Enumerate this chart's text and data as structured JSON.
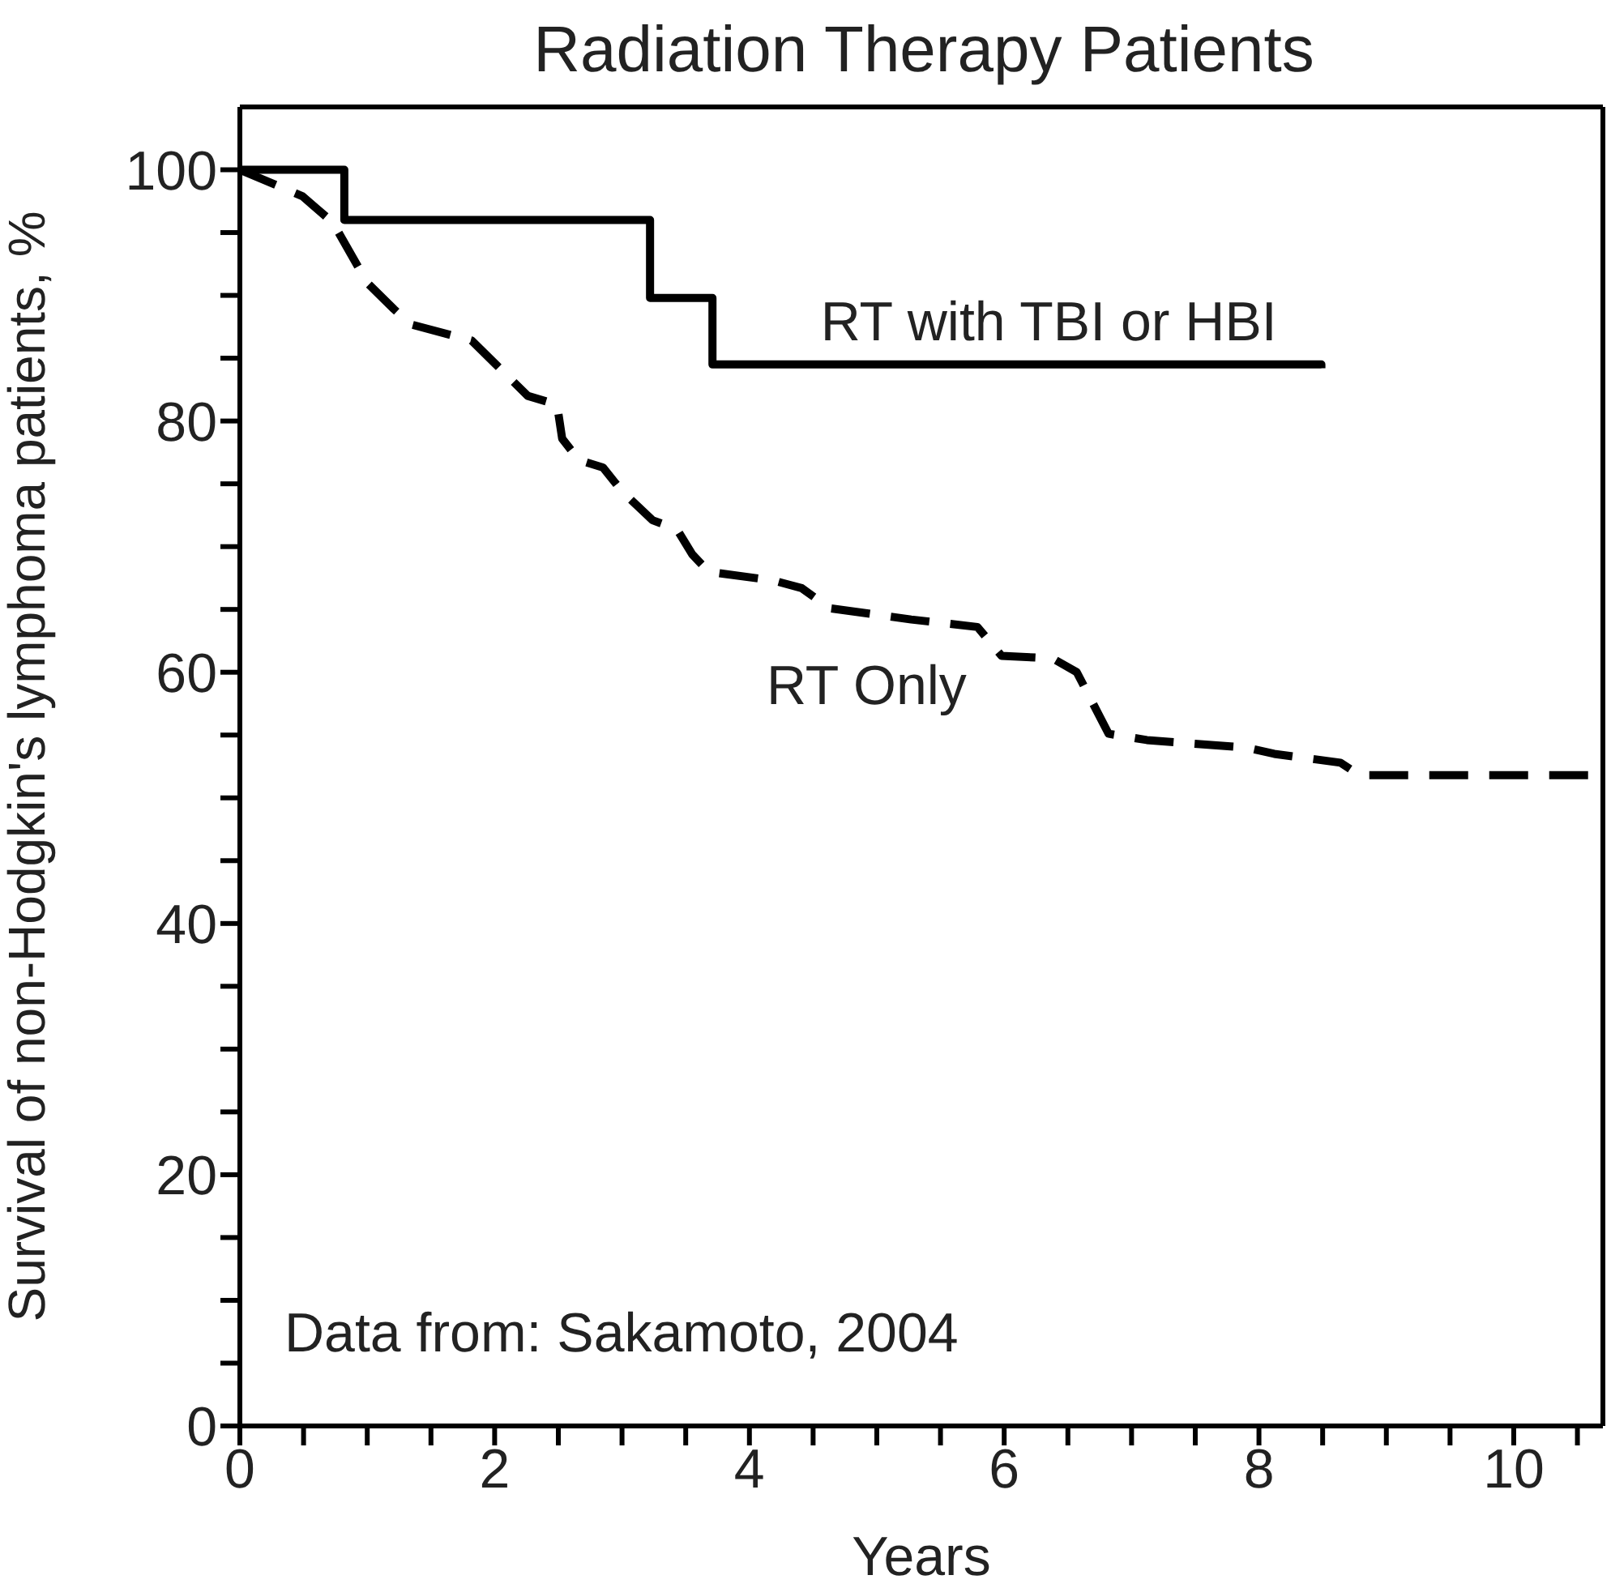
{
  "chart_data": {
    "type": "line",
    "title": "Radiation Therapy Patients",
    "xlabel": "Years",
    "ylabel": "Survival of non-Hodgkin's lymphoma patients, %",
    "xlim": [
      0,
      10.7
    ],
    "ylim": [
      0,
      105
    ],
    "xticks": [
      0,
      {
        "value": 0.5,
        "label": null
      },
      {
        "value": 1,
        "label": null
      },
      {
        "value": 1.5,
        "label": null
      },
      2,
      {
        "value": 2.5,
        "label": null
      },
      {
        "value": 3,
        "label": null
      },
      {
        "value": 3.5,
        "label": null
      },
      4,
      {
        "value": 4.5,
        "label": null
      },
      {
        "value": 5,
        "label": null
      },
      {
        "value": 5.5,
        "label": null
      },
      6,
      {
        "value": 6.5,
        "label": null
      },
      {
        "value": 7,
        "label": null
      },
      {
        "value": 7.5,
        "label": null
      },
      8,
      {
        "value": 8.5,
        "label": null
      },
      {
        "value": 9,
        "label": null
      },
      {
        "value": 9.5,
        "label": null
      },
      10,
      {
        "value": 10.5,
        "label": null
      }
    ],
    "yticks": [
      0,
      {
        "value": 5,
        "label": null
      },
      {
        "value": 10,
        "label": null
      },
      {
        "value": 15,
        "label": null
      },
      20,
      {
        "value": 25,
        "label": null
      },
      {
        "value": 30,
        "label": null
      },
      {
        "value": 35,
        "label": null
      },
      40,
      {
        "value": 45,
        "label": null
      },
      {
        "value": 50,
        "label": null
      },
      {
        "value": 55,
        "label": null
      },
      60,
      {
        "value": 65,
        "label": null
      },
      {
        "value": 70,
        "label": null
      },
      {
        "value": 75,
        "label": null
      },
      80,
      {
        "value": 85,
        "label": null
      },
      {
        "value": 90,
        "label": null
      },
      {
        "value": 95,
        "label": null
      },
      100
    ],
    "series": [
      {
        "name": "RT with TBI or HBI",
        "type": "step",
        "color": "#000000",
        "line_style": "solid",
        "x": [
          0,
          0.82,
          3.22,
          3.71,
          8.49
        ],
        "values": [
          100,
          96,
          89.8,
          84.5,
          84.2
        ]
      },
      {
        "name": "RT Only",
        "type": "line",
        "color": "#000000",
        "line_style": "dashed",
        "x": [
          0,
          0.49,
          0.73,
          1.0,
          1.21,
          1.34,
          1.82,
          2.02,
          2.26,
          2.49,
          2.53,
          2.66,
          2.85,
          3.0,
          3.24,
          3.43,
          3.55,
          3.68,
          4.19,
          4.41,
          4.63,
          5.27,
          5.79,
          5.98,
          6.38,
          6.57,
          6.82,
          7.12,
          7.9,
          8.12,
          8.64,
          8.79,
          10.59
        ],
        "values": [
          100,
          97.9,
          95.8,
          91.0,
          88.9,
          87.7,
          86.4,
          84.4,
          82.0,
          81.3,
          78.6,
          76.9,
          76.3,
          74.4,
          72.1,
          71.4,
          69.4,
          68.0,
          67.3,
          66.7,
          65.1,
          64.2,
          63.6,
          61.3,
          61.1,
          60.0,
          55.1,
          54.6,
          54.0,
          53.5,
          52.8,
          51.8,
          51.8
        ]
      }
    ],
    "annotations": [
      "Data from: Sakamoto, 2004"
    ]
  }
}
